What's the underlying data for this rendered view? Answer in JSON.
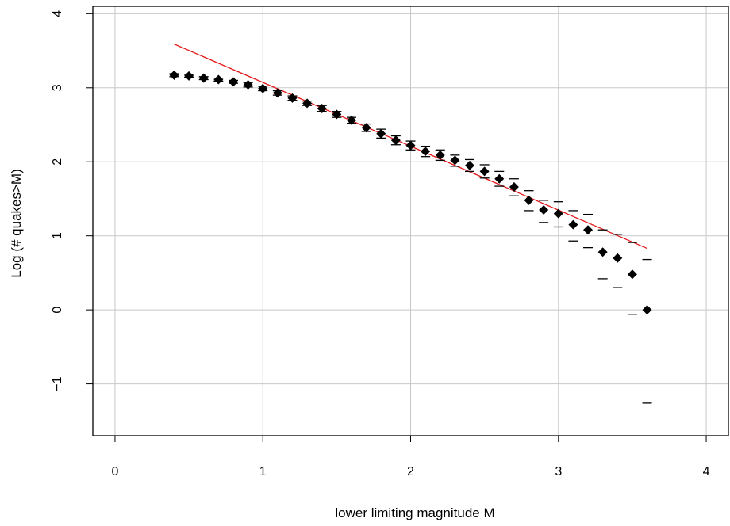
{
  "chart_data": {
    "type": "scatter",
    "title": "",
    "xlabel": "lower limiting magnitude M",
    "ylabel": "Log (# quakes>M)",
    "xlim": [
      -0.15,
      4.15
    ],
    "ylim": [
      -1.7,
      4.1
    ],
    "x_ticks": [
      0,
      1,
      2,
      3,
      4
    ],
    "x_tick_labels": [
      "0",
      "1",
      "2",
      "3",
      "4"
    ],
    "y_ticks": [
      -1,
      0,
      1,
      2,
      3,
      4
    ],
    "y_tick_labels": [
      "−1",
      "0",
      "1",
      "2",
      "3",
      "4"
    ],
    "grid": true,
    "series": [
      {
        "kind": "points",
        "marker": "filled-diamond",
        "color": "#000000",
        "x": [
          0.4,
          0.5,
          0.6,
          0.7,
          0.8,
          0.9,
          1.0,
          1.1,
          1.2,
          1.3,
          1.4,
          1.5,
          1.6,
          1.7,
          1.8,
          1.9,
          2.0,
          2.1,
          2.2,
          2.3,
          2.4,
          2.5,
          2.6,
          2.7,
          2.8,
          2.9,
          3.0,
          3.1,
          3.2,
          3.3,
          3.4,
          3.5,
          3.6
        ],
        "y": [
          3.17,
          3.16,
          3.13,
          3.11,
          3.08,
          3.04,
          2.99,
          2.93,
          2.86,
          2.79,
          2.72,
          2.64,
          2.56,
          2.46,
          2.38,
          2.29,
          2.22,
          2.14,
          2.09,
          2.02,
          1.95,
          1.87,
          1.77,
          1.66,
          1.48,
          1.35,
          1.3,
          1.15,
          1.08,
          0.78,
          0.7,
          0.48,
          0.0
        ]
      },
      {
        "kind": "error-bars",
        "marker": "dash",
        "color": "#000000",
        "x": [
          0.4,
          0.5,
          0.6,
          0.7,
          0.8,
          0.9,
          1.0,
          1.1,
          1.2,
          1.3,
          1.4,
          1.5,
          1.6,
          1.7,
          1.8,
          1.9,
          2.0,
          2.1,
          2.2,
          2.3,
          2.4,
          2.5,
          2.6,
          2.7,
          2.8,
          2.9,
          3.0,
          3.1,
          3.2,
          3.3,
          3.4,
          3.5,
          3.6
        ],
        "upper": [
          3.19,
          3.18,
          3.15,
          3.13,
          3.1,
          3.07,
          3.02,
          2.96,
          2.89,
          2.82,
          2.76,
          2.68,
          2.6,
          2.51,
          2.44,
          2.35,
          2.28,
          2.21,
          2.16,
          2.09,
          2.03,
          1.96,
          1.87,
          1.77,
          1.61,
          1.48,
          1.46,
          1.34,
          1.29,
          1.08,
          1.02,
          0.91,
          0.68
        ],
        "lower": [
          3.15,
          3.14,
          3.11,
          3.09,
          3.06,
          3.01,
          2.96,
          2.9,
          2.83,
          2.76,
          2.68,
          2.6,
          2.52,
          2.41,
          2.32,
          2.23,
          2.16,
          2.07,
          2.02,
          1.94,
          1.87,
          1.78,
          1.67,
          1.54,
          1.34,
          1.18,
          1.12,
          0.93,
          0.84,
          0.42,
          0.3,
          -0.06,
          -1.26
        ]
      },
      {
        "kind": "fit-line",
        "color": "#e31a1c",
        "x": [
          0.4,
          3.6
        ],
        "y": [
          3.59,
          0.83
        ]
      }
    ]
  }
}
